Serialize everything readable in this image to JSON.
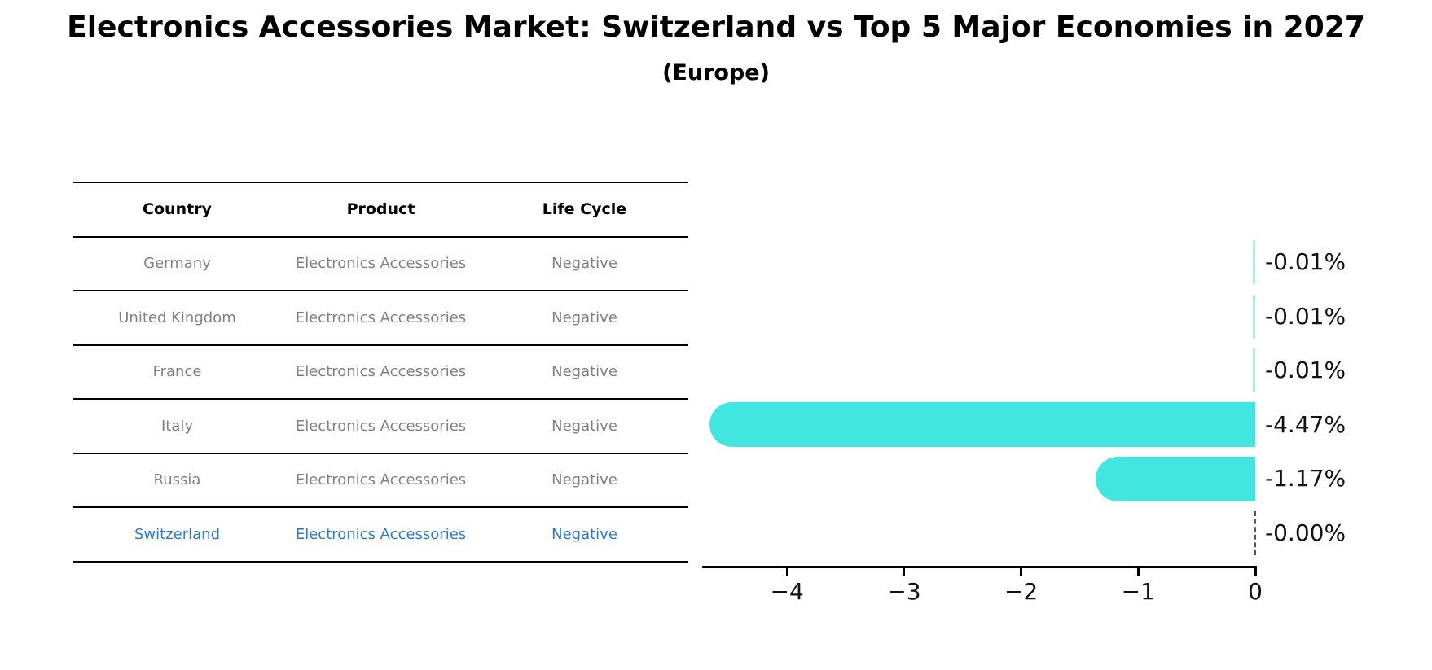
{
  "title": "Electronics Accessories Market: Switzerland vs Top 5 Major Economies in 2027",
  "subtitle": "(Europe)",
  "table": {
    "columns": [
      "Country",
      "Product",
      "Life Cycle"
    ],
    "rows": [
      {
        "country": "Germany",
        "product": "Electronics Accessories",
        "life_cycle": "Negative",
        "highlight": false
      },
      {
        "country": "United Kingdom",
        "product": "Electronics Accessories",
        "life_cycle": "Negative",
        "highlight": false
      },
      {
        "country": "France",
        "product": "Electronics Accessories",
        "life_cycle": "Negative",
        "highlight": false
      },
      {
        "country": "Italy",
        "product": "Electronics Accessories",
        "life_cycle": "Negative",
        "highlight": false
      },
      {
        "country": "Russia",
        "product": "Electronics Accessories",
        "life_cycle": "Negative",
        "highlight": false
      },
      {
        "country": "Switzerland",
        "product": "Electronics Accessories",
        "life_cycle": "Negative",
        "highlight": true
      }
    ]
  },
  "chart_data": {
    "type": "bar",
    "orientation": "horizontal",
    "title": "Electronics Accessories Market: Switzerland vs Top 5 Major Economies in 2027",
    "subtitle": "(Europe)",
    "categories": [
      "Germany",
      "United Kingdom",
      "France",
      "Italy",
      "Russia",
      "Switzerland"
    ],
    "values": [
      -0.01,
      -0.01,
      -0.01,
      -4.47,
      -1.17,
      0.0
    ],
    "value_labels": [
      "-0.01%",
      "-0.01%",
      "-0.01%",
      "-4.47%",
      "-1.17%",
      "-0.00%"
    ],
    "xlabel": "",
    "ylabel": "",
    "xlim": [
      -4.72,
      0
    ],
    "xticks": [
      -4,
      -3,
      -2,
      -1,
      0
    ],
    "xtick_labels": [
      "−4",
      "−3",
      "−2",
      "−1",
      "0"
    ],
    "grid": false,
    "legend": "none",
    "bar_color": "#42e6e0",
    "tiny_bar_color": "#abebe6",
    "highlight_text_color": "#2b7bc4",
    "zero_marker_style": "dashed-line"
  }
}
